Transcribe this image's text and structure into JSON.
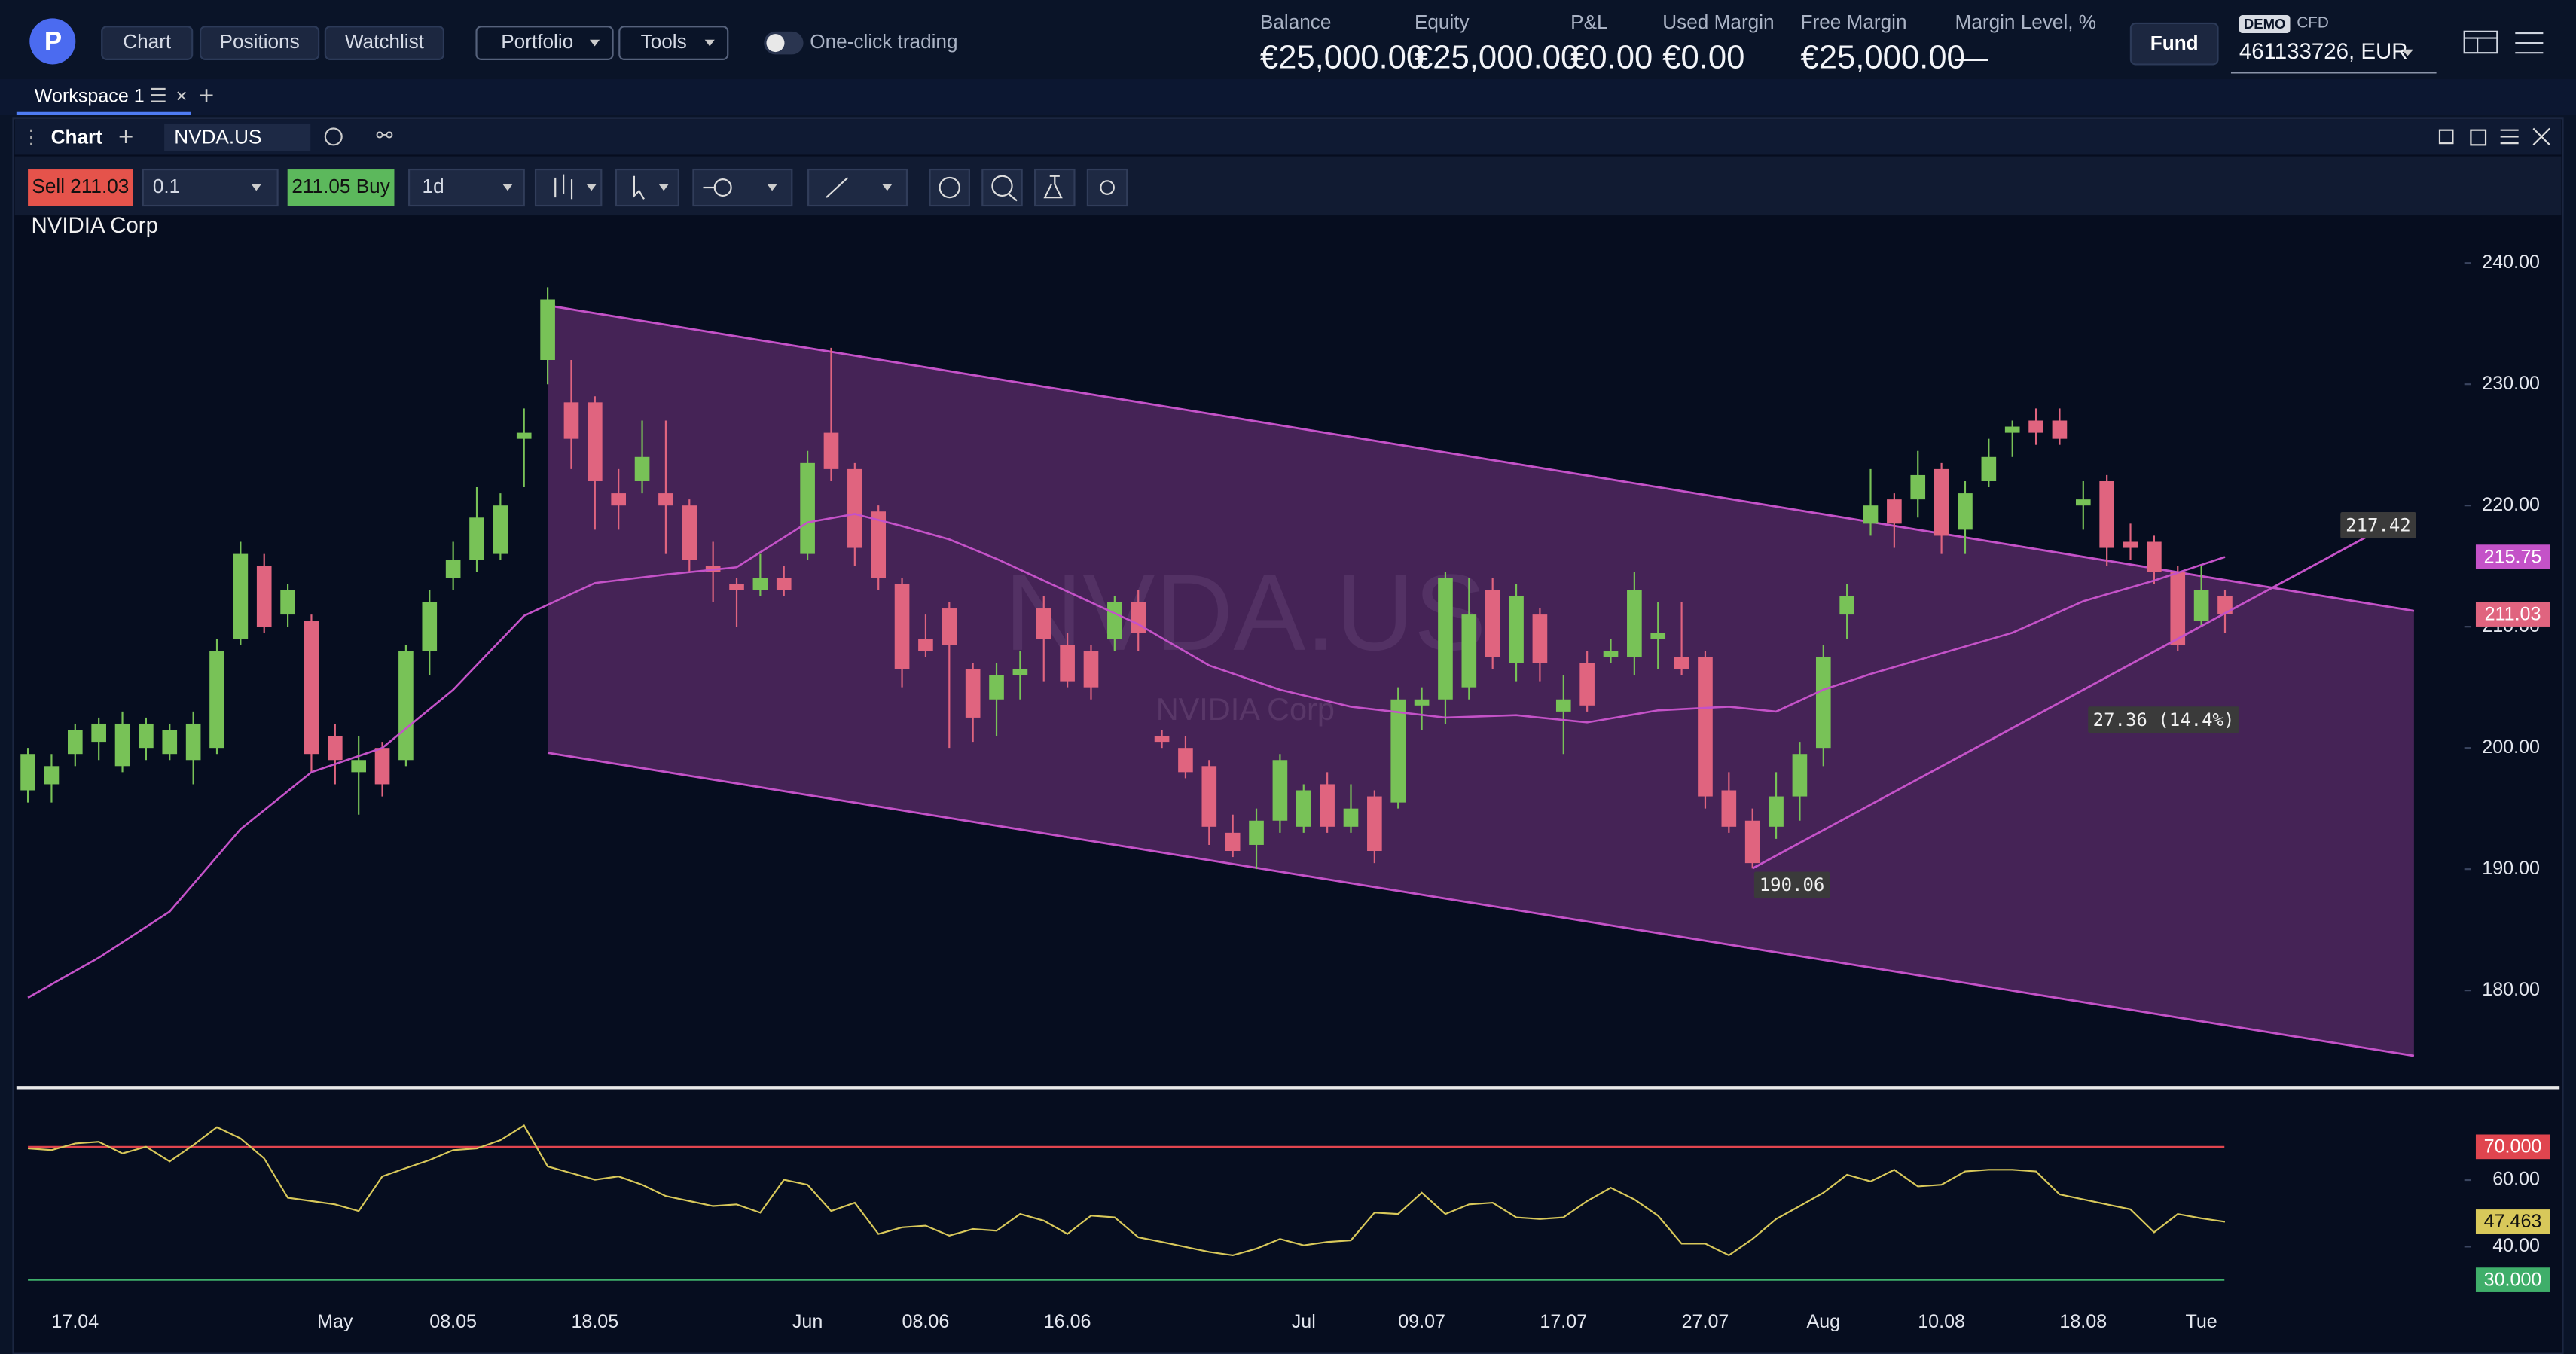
{
  "header": {
    "nav": [
      "Chart",
      "Positions",
      "Watchlist"
    ],
    "menus": [
      "Portfolio",
      "Tools"
    ],
    "toggle": "One-click trading",
    "stats": [
      {
        "label": "Balance",
        "value": "€25,000.00"
      },
      {
        "label": "Equity",
        "value": "€25,000.00"
      },
      {
        "label": "P&L",
        "value": "€0.00"
      },
      {
        "label": "Used Margin",
        "value": "€0.00"
      },
      {
        "label": "Free Margin",
        "value": "€25,000.00"
      },
      {
        "label": "Margin Level, %",
        "value": "—"
      }
    ],
    "fund": "Fund",
    "account": {
      "badge": "DEMO",
      "type": "CFD",
      "id": "461133726, EUR"
    }
  },
  "workspace": {
    "tab": "Workspace 1"
  },
  "panel": {
    "title": "Chart",
    "symbol": "NVDA.US"
  },
  "toolbar": {
    "sell": "Sell 211.03",
    "quantity": "0.1",
    "buy": "211.05 Buy",
    "interval": "1d"
  },
  "chart_data": {
    "type": "candlestick",
    "title": "NVIDIA Corp",
    "watermark": "NVDA.US",
    "watermark_subtitle": "NVIDIA Corp",
    "up_color": "#78c257",
    "down_color": "#e0647f",
    "categories": [
      null,
      null,
      "17.04",
      null,
      null,
      null,
      null,
      null,
      null,
      null,
      null,
      null,
      null,
      "May",
      null,
      null,
      null,
      null,
      "08.05",
      null,
      null,
      null,
      null,
      null,
      "18.05",
      null,
      null,
      null,
      null,
      null,
      null,
      null,
      null,
      "Jun",
      null,
      null,
      null,
      null,
      "08.06",
      null,
      null,
      null,
      null,
      null,
      "16.06",
      null,
      null,
      null,
      null,
      null,
      null,
      null,
      null,
      null,
      "Jul",
      null,
      null,
      null,
      null,
      "09.07",
      null,
      null,
      null,
      null,
      null,
      "17.07",
      null,
      null,
      null,
      null,
      null,
      "27.07",
      null,
      null,
      null,
      null,
      "Aug",
      null,
      null,
      null,
      null,
      "10.08",
      null,
      null,
      null,
      null,
      null,
      "18.08",
      null,
      null,
      null,
      null,
      "Tue",
      null
    ],
    "open": [
      196.5,
      197,
      199.5,
      200.5,
      198.5,
      200,
      199.5,
      199,
      200,
      209,
      215,
      211,
      210.5,
      201,
      198,
      200,
      199,
      208,
      214,
      215.5,
      216,
      225.5,
      232,
      228.5,
      228.5,
      221,
      222,
      221,
      220,
      215,
      213.5,
      213,
      214,
      216,
      226,
      223,
      219.5,
      213.5,
      209,
      211.5,
      206.5,
      204,
      206,
      211.5,
      208.5,
      208,
      209,
      212,
      201,
      200,
      198.5,
      193,
      192,
      194,
      193.5,
      197,
      193.5,
      196,
      195.5,
      203.5,
      204,
      205,
      213,
      207,
      211,
      203,
      207,
      207.5,
      207.5,
      209,
      207.5,
      207.5,
      196.5,
      194,
      193.5,
      196,
      200,
      211,
      218.5,
      220.5,
      220.5,
      223,
      218,
      222,
      226,
      227,
      227,
      220,
      222,
      217,
      217,
      214.5,
      210.5,
      212.5
    ],
    "high": [
      200,
      199.5,
      202,
      202.5,
      203,
      202.5,
      202,
      203,
      209,
      217,
      216,
      213.5,
      211,
      202,
      201,
      200.5,
      208.5,
      213,
      217,
      221.5,
      221,
      228,
      238,
      232,
      229,
      223,
      227,
      227,
      220.5,
      217,
      214,
      216,
      215,
      224.5,
      233,
      223.5,
      220,
      214,
      211,
      212,
      207,
      207,
      208,
      212.5,
      209.5,
      208.5,
      212.5,
      213,
      201.5,
      201,
      199,
      194.5,
      195,
      199.5,
      197,
      198,
      197,
      196.5,
      205,
      205,
      214.5,
      214,
      214,
      213.5,
      211.5,
      206,
      208,
      209,
      214.5,
      212,
      212,
      208,
      198,
      195,
      198,
      200.5,
      208.5,
      213.5,
      223,
      221,
      224.5,
      223.5,
      222,
      225.5,
      227,
      228,
      228,
      222,
      222.5,
      218.5,
      217.5,
      215,
      215,
      213
    ],
    "low": [
      195.5,
      195.5,
      198.5,
      199,
      198,
      199,
      199,
      197,
      199.5,
      208.5,
      209.5,
      210,
      198,
      197,
      194.5,
      196,
      198.5,
      206,
      213,
      214.5,
      215.5,
      221.5,
      230,
      223,
      218,
      218,
      221,
      216,
      214.5,
      212,
      210,
      212.5,
      212.5,
      215.5,
      222,
      215,
      213,
      205,
      207.5,
      200,
      200.5,
      201,
      204,
      205.5,
      205,
      204,
      208,
      208,
      200,
      197.5,
      192,
      191,
      190,
      193,
      193,
      193,
      193,
      190.5,
      195,
      201.5,
      202,
      204,
      206.5,
      205.5,
      205.5,
      199.5,
      203,
      207,
      206,
      206.5,
      206,
      195,
      193,
      190.06,
      192.5,
      194,
      198.5,
      209,
      217.5,
      216.5,
      219,
      216,
      216,
      221.5,
      224,
      225,
      225,
      218,
      215,
      215.5,
      213.5,
      208,
      210,
      209.5
    ],
    "close": [
      199.5,
      198.5,
      201.5,
      202,
      202,
      202,
      201.5,
      202,
      208,
      216,
      210,
      213,
      199.5,
      199,
      199,
      197,
      208,
      212,
      215.5,
      219,
      220,
      226,
      237,
      225.5,
      222,
      220,
      224,
      220,
      215.5,
      214.5,
      213,
      214,
      213,
      223.5,
      223,
      216.5,
      214,
      206.5,
      208,
      208.5,
      202.5,
      206,
      206.5,
      209,
      205.5,
      205,
      212,
      209.5,
      200.5,
      198,
      193.5,
      191.5,
      194,
      199,
      196.5,
      193.5,
      195,
      191.5,
      204,
      204,
      214,
      211,
      207.5,
      212.5,
      207,
      204,
      203.5,
      208,
      213,
      209.5,
      206.5,
      196,
      193.5,
      190.5,
      196,
      199.5,
      207.5,
      212.5,
      220,
      218.5,
      222.5,
      217.5,
      221,
      224,
      226.5,
      226,
      225.5,
      220.5,
      216.5,
      216.5,
      214.5,
      208.5,
      213,
      211.03
    ],
    "ylim": [
      172.25,
      242.7
    ],
    "yticks": [
      {
        "value": 180,
        "label": "180.00"
      },
      {
        "value": 190,
        "label": "190.00"
      },
      {
        "value": 200,
        "label": "200.00"
      },
      {
        "value": 210,
        "label": "210.00"
      },
      {
        "value": 220,
        "label": "220.00"
      },
      {
        "value": 230,
        "label": "230.00"
      },
      {
        "value": 240,
        "label": "240.00"
      }
    ],
    "grid": false,
    "moving_average": {
      "color": "#c452c8",
      "x": [
        0,
        3,
        6,
        9,
        12,
        15,
        18,
        21,
        24,
        27,
        30,
        33,
        35,
        37,
        39,
        41,
        44,
        47,
        50,
        53,
        56,
        60,
        63,
        66,
        69,
        72,
        74,
        76,
        78,
        81,
        84,
        87,
        90,
        93
      ],
      "values": [
        179.4,
        182.7,
        186.5,
        193.3,
        198,
        200,
        204.8,
        210.9,
        213.6,
        214.3,
        214.9,
        218.6,
        219.3,
        218.3,
        217.2,
        215.6,
        212.9,
        210.2,
        206.8,
        204.8,
        203.4,
        202.5,
        202.7,
        202.1,
        203.1,
        203.4,
        203,
        204.8,
        206.1,
        207.8,
        209.5,
        212.1,
        213.8,
        215.75
      ]
    },
    "channel": {
      "color": "#c452c8",
      "x": [
        22,
        101
      ],
      "upper": [
        236.5,
        211.3
      ],
      "lower": [
        199.6,
        174.6
      ]
    },
    "trendline": {
      "color": "#c452c8",
      "x": [
        73,
        99
      ],
      "values": [
        190.06,
        217.42
      ],
      "measure_label": "27.36 (14.4%)"
    },
    "rsi": {
      "color": "#d8c85a",
      "values": [
        69.5,
        69,
        71,
        71.5,
        68,
        70,
        65.6,
        70.5,
        75.9,
        72.5,
        66.5,
        54.7,
        53.7,
        52.7,
        50.7,
        61.1,
        63.6,
        66,
        69,
        69.5,
        72,
        76.4,
        64.1,
        62.1,
        60.1,
        61.1,
        58.6,
        55.2,
        53.7,
        52.2,
        52.7,
        50.2,
        60.1,
        58.6,
        50.7,
        53.2,
        43.8,
        45.8,
        46.3,
        43.3,
        45.3,
        44.8,
        49.8,
        47.8,
        43.8,
        49.3,
        48.8,
        42.8,
        41.4,
        39.9,
        38.4,
        37.4,
        39.4,
        42.3,
        40.4,
        41.4,
        41.9,
        50.2,
        49.8,
        56.2,
        49.8,
        52.7,
        53.2,
        48.8,
        48.3,
        48.8,
        53.7,
        57.7,
        54.2,
        49.3,
        40.9,
        40.9,
        37.4,
        42.3,
        48.3,
        52.2,
        56.2,
        61.6,
        59.6,
        63.1,
        58.1,
        58.6,
        62.6,
        63.1,
        63.1,
        62.6,
        55.7,
        54.2,
        52.7,
        51.2,
        44.3,
        49.8,
        48.5,
        47.463
      ],
      "ylim": [
        24.6,
        86.3
      ],
      "yticks": [
        {
          "value": 40,
          "label": "40.00"
        },
        {
          "value": 60,
          "label": "60.00"
        }
      ],
      "levels": [
        {
          "value": 70,
          "label": "70.000",
          "color": "#e0454f"
        },
        {
          "value": 30,
          "label": "30.000",
          "color": "#3fae6a"
        }
      ]
    }
  }
}
